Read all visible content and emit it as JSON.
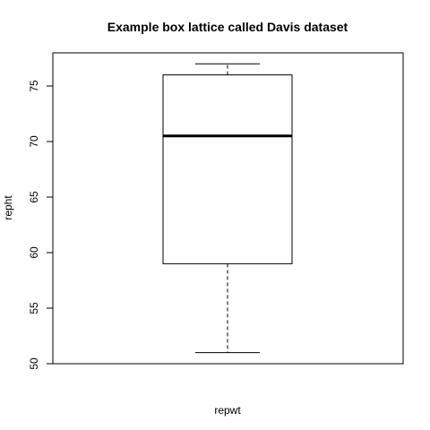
{
  "chart_data": {
    "type": "box",
    "title": "Example box lattice called Davis dataset",
    "xlabel": "repwt",
    "ylabel": "repht",
    "ylim": [
      50,
      78
    ],
    "yticks": [
      50,
      55,
      60,
      65,
      70,
      75
    ],
    "ytick_labels": [
      "50",
      "55",
      "60",
      "65",
      "70",
      "75"
    ],
    "grid": false,
    "box": {
      "whisker_low": 51,
      "q1": 59,
      "median": 70.5,
      "q3": 76,
      "whisker_high": 77
    },
    "colors": {
      "stroke": "#000000",
      "background": "#ffffff"
    }
  }
}
